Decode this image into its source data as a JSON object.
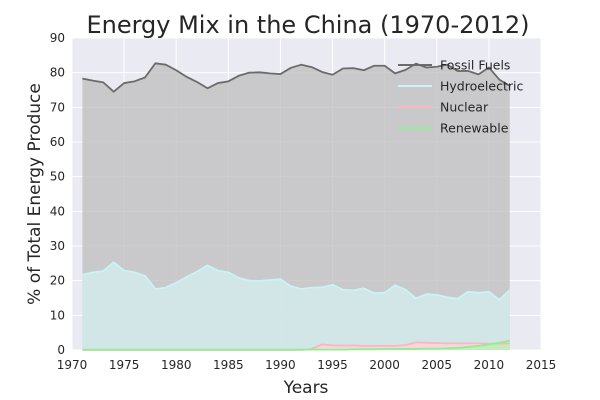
{
  "chart_data": {
    "type": "area",
    "title": "Energy Mix in the China (1970-2012)",
    "xlabel": "Years",
    "ylabel": "% of Total Energy Produce",
    "xlim": [
      1970,
      2015
    ],
    "ylim": [
      0,
      90
    ],
    "xticks": [
      1970,
      1975,
      1980,
      1985,
      1990,
      1995,
      2000,
      2005,
      2010,
      2015
    ],
    "yticks": [
      0,
      10,
      20,
      30,
      40,
      50,
      60,
      70,
      80,
      90
    ],
    "grid": true,
    "legend_position": "top-right",
    "x": [
      1971,
      1972,
      1973,
      1974,
      1975,
      1976,
      1977,
      1978,
      1979,
      1980,
      1981,
      1982,
      1983,
      1984,
      1985,
      1986,
      1987,
      1988,
      1989,
      1990,
      1991,
      1992,
      1993,
      1994,
      1995,
      1996,
      1997,
      1998,
      1999,
      2000,
      2001,
      2002,
      2003,
      2004,
      2005,
      2006,
      2007,
      2008,
      2009,
      2010,
      2011,
      2012
    ],
    "series": [
      {
        "name": "Fossil Fuels",
        "line_color": "#6b6b6b",
        "fill_color": "#bdbdbd",
        "values": [
          78.3,
          77.7,
          77.2,
          74.5,
          77.0,
          77.5,
          78.6,
          82.7,
          82.3,
          80.7,
          78.8,
          77.3,
          75.5,
          77.0,
          77.5,
          79.1,
          80.0,
          80.1,
          79.8,
          79.6,
          81.4,
          82.3,
          81.6,
          80.2,
          79.4,
          81.2,
          81.3,
          80.7,
          82.0,
          82.0,
          79.8,
          80.8,
          82.6,
          81.5,
          81.7,
          82.3,
          80.5,
          80.5,
          79.5,
          81.5,
          78.0,
          76.2
        ]
      },
      {
        "name": "Hydroelectric",
        "line_color": "#c8f5f3",
        "fill_color": "#d4eef0",
        "values": [
          21.7,
          22.4,
          22.8,
          25.3,
          22.9,
          22.4,
          21.4,
          17.6,
          18.0,
          19.4,
          21.1,
          22.6,
          24.4,
          22.9,
          22.4,
          20.8,
          20.0,
          19.9,
          20.2,
          20.4,
          18.4,
          17.6,
          18.0,
          18.1,
          18.8,
          17.4,
          17.2,
          17.8,
          16.4,
          16.5,
          18.7,
          17.4,
          14.9,
          16.1,
          15.9,
          15.2,
          14.8,
          16.8,
          16.5,
          16.8,
          14.5,
          17.3
        ]
      },
      {
        "name": "Nuclear",
        "line_color": "#ffb3c1",
        "fill_color": "#ffd3db",
        "values": [
          0,
          0,
          0,
          0,
          0,
          0,
          0,
          0,
          0,
          0,
          0,
          0,
          0,
          0,
          0,
          0,
          0,
          0,
          0,
          0,
          0,
          0,
          0.3,
          1.6,
          1.3,
          1.3,
          1.3,
          1.2,
          1.2,
          1.2,
          1.2,
          1.4,
          2.2,
          2.1,
          2.0,
          1.9,
          1.9,
          1.9,
          1.9,
          1.8,
          1.8,
          1.9
        ]
      },
      {
        "name": "Renewable",
        "line_color": "#8ff08f",
        "fill_color": "#b5f2b5",
        "values": [
          0.1,
          0.1,
          0.1,
          0.1,
          0.1,
          0.1,
          0.1,
          0.1,
          0.1,
          0.1,
          0.1,
          0.1,
          0.1,
          0.1,
          0.1,
          0.1,
          0.1,
          0.1,
          0.1,
          0.1,
          0.1,
          0.1,
          0.1,
          0.1,
          0.1,
          0.1,
          0.2,
          0.2,
          0.2,
          0.3,
          0.3,
          0.3,
          0.3,
          0.4,
          0.4,
          0.5,
          0.6,
          0.9,
          1.2,
          1.6,
          2.1,
          2.7
        ]
      }
    ]
  }
}
